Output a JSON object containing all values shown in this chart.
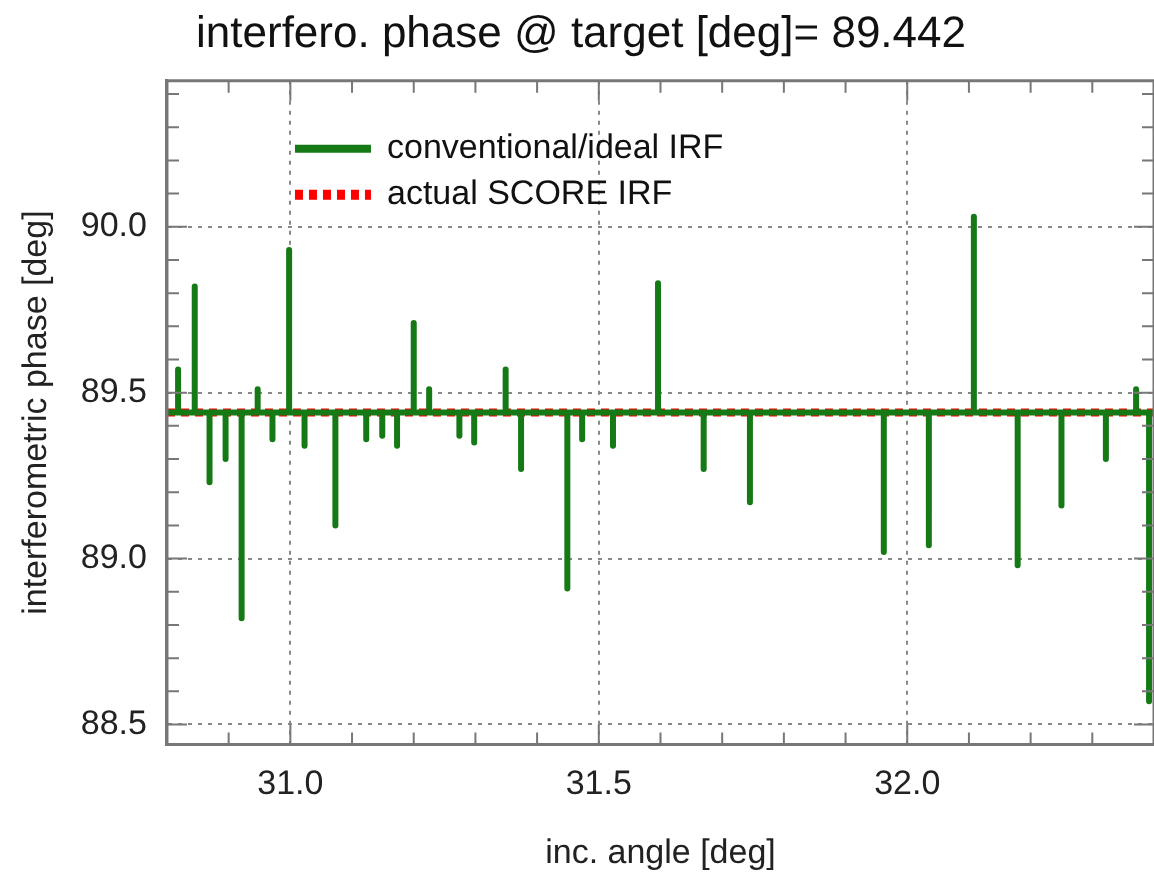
{
  "chart_data": {
    "type": "line",
    "title": "interfero. phase @ target [deg]= 89.442",
    "xlabel": "inc. angle [deg]",
    "ylabel": "interferometric phase [deg]",
    "xlim": [
      30.8,
      32.4
    ],
    "ylim": [
      88.44,
      90.44
    ],
    "xticks": [
      {
        "value": 30.9,
        "label": null
      },
      {
        "value": 31,
        "label": "31.0"
      },
      {
        "value": 31.1,
        "label": null
      },
      {
        "value": 31.2,
        "label": null
      },
      {
        "value": 31.3,
        "label": null
      },
      {
        "value": 31.4,
        "label": null
      },
      31.5,
      {
        "value": 31.6,
        "label": null
      },
      {
        "value": 31.7,
        "label": null
      },
      {
        "value": 31.8,
        "label": null
      },
      {
        "value": 31.9,
        "label": null
      },
      {
        "value": 32,
        "label": "32.0"
      },
      {
        "value": 32.1,
        "label": null
      },
      {
        "value": 32.2,
        "label": null
      },
      {
        "value": 32.3,
        "label": null
      }
    ],
    "yticks": [
      88.5,
      {
        "value": 88.6,
        "label": null
      },
      {
        "value": 88.7,
        "label": null
      },
      {
        "value": 88.8,
        "label": null
      },
      {
        "value": 88.9,
        "label": null
      },
      {
        "value": 89,
        "label": "89.0"
      },
      {
        "value": 89.1,
        "label": null
      },
      {
        "value": 89.2,
        "label": null
      },
      {
        "value": 89.3,
        "label": null
      },
      {
        "value": 89.4,
        "label": null
      },
      89.5,
      {
        "value": 89.6,
        "label": null
      },
      {
        "value": 89.7,
        "label": null
      },
      {
        "value": 89.8,
        "label": null
      },
      {
        "value": 89.9,
        "label": null
      },
      {
        "value": 90,
        "label": "90.0"
      },
      {
        "value": 90.1,
        "label": null
      },
      {
        "value": 90.2,
        "label": null
      },
      {
        "value": 90.3,
        "label": null
      },
      {
        "value": 90.4,
        "label": null
      }
    ],
    "grid": true,
    "legend": "top left",
    "marker": "none",
    "series": [
      {
        "name": "conventional/ideal IRF",
        "color": "#157a15",
        "line_style": "solid",
        "x": [
          30.8,
          30.818,
          30.818,
          30.818,
          30.845,
          30.845,
          30.845,
          30.869,
          30.869,
          30.869,
          30.895,
          30.895,
          30.895,
          30.921,
          30.921,
          30.921,
          30.947,
          30.947,
          30.947,
          30.971,
          30.971,
          30.971,
          30.998,
          30.998,
          30.998,
          31.023,
          31.023,
          31.023,
          31.073,
          31.073,
          31.073,
          31.123,
          31.123,
          31.123,
          31.149,
          31.149,
          31.149,
          31.173,
          31.173,
          31.173,
          31.2,
          31.2,
          31.2,
          31.225,
          31.225,
          31.225,
          31.274,
          31.274,
          31.274,
          31.298,
          31.298,
          31.298,
          31.349,
          31.349,
          31.349,
          31.374,
          31.374,
          31.374,
          31.449,
          31.449,
          31.449,
          31.473,
          31.473,
          31.473,
          31.523,
          31.523,
          31.523,
          31.596,
          31.596,
          31.596,
          31.67,
          31.67,
          31.67,
          31.745,
          31.745,
          31.745,
          31.962,
          31.962,
          31.962,
          32.035,
          32.035,
          32.035,
          32.108,
          32.108,
          32.108,
          32.179,
          32.179,
          32.179,
          32.25,
          32.25,
          32.25,
          32.322,
          32.322,
          32.322,
          32.371,
          32.371,
          32.371,
          32.392,
          32.392,
          32.392,
          32.4
        ],
        "values": [
          89.44,
          89.44,
          89.57,
          89.44,
          89.44,
          89.82,
          89.44,
          89.44,
          89.23,
          89.44,
          89.44,
          89.3,
          89.44,
          89.44,
          88.82,
          89.44,
          89.44,
          89.51,
          89.44,
          89.44,
          89.36,
          89.44,
          89.44,
          89.93,
          89.44,
          89.44,
          89.34,
          89.44,
          89.44,
          89.1,
          89.44,
          89.44,
          89.36,
          89.44,
          89.44,
          89.37,
          89.44,
          89.44,
          89.34,
          89.44,
          89.44,
          89.71,
          89.44,
          89.44,
          89.51,
          89.44,
          89.44,
          89.37,
          89.44,
          89.44,
          89.35,
          89.44,
          89.44,
          89.57,
          89.44,
          89.44,
          89.27,
          89.44,
          89.44,
          88.91,
          89.44,
          89.44,
          89.36,
          89.44,
          89.44,
          89.34,
          89.44,
          89.44,
          89.83,
          89.44,
          89.44,
          89.27,
          89.44,
          89.44,
          89.17,
          89.44,
          89.44,
          89.02,
          89.44,
          89.44,
          89.04,
          89.44,
          89.44,
          90.03,
          89.44,
          89.44,
          88.98,
          89.44,
          89.44,
          89.16,
          89.44,
          89.44,
          89.3,
          89.44,
          89.44,
          89.51,
          89.44,
          89.44,
          88.57,
          89.44,
          89.44
        ]
      },
      {
        "name": "actual SCORE IRF",
        "color": "#ff0000",
        "line_style": "dotted",
        "x": [
          30.8,
          32.4
        ],
        "values": [
          89.44,
          89.44
        ]
      }
    ]
  }
}
